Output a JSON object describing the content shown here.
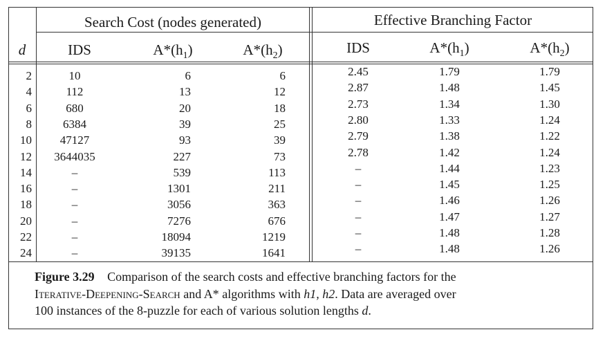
{
  "headers": {
    "search_cost": "Search Cost (nodes generated)",
    "ebf": "Effective Branching Factor",
    "d": "d",
    "ids": "IDS",
    "a_star_h1_base": "A*(h",
    "a_star_h1_sub": "1",
    "a_star_h2_base": "A*(h",
    "a_star_h2_sub": "2",
    "close_paren": ")"
  },
  "rows": [
    {
      "d": "2",
      "ids_cost": "10",
      "h1_cost": "6",
      "h2_cost": "6",
      "ids_ebf": "2.45",
      "h1_ebf": "1.79",
      "h2_ebf": "1.79"
    },
    {
      "d": "4",
      "ids_cost": "112",
      "h1_cost": "13",
      "h2_cost": "12",
      "ids_ebf": "2.87",
      "h1_ebf": "1.48",
      "h2_ebf": "1.45"
    },
    {
      "d": "6",
      "ids_cost": "680",
      "h1_cost": "20",
      "h2_cost": "18",
      "ids_ebf": "2.73",
      "h1_ebf": "1.34",
      "h2_ebf": "1.30"
    },
    {
      "d": "8",
      "ids_cost": "6384",
      "h1_cost": "39",
      "h2_cost": "25",
      "ids_ebf": "2.80",
      "h1_ebf": "1.33",
      "h2_ebf": "1.24"
    },
    {
      "d": "10",
      "ids_cost": "47127",
      "h1_cost": "93",
      "h2_cost": "39",
      "ids_ebf": "2.79",
      "h1_ebf": "1.38",
      "h2_ebf": "1.22"
    },
    {
      "d": "12",
      "ids_cost": "3644035",
      "h1_cost": "227",
      "h2_cost": "73",
      "ids_ebf": "2.78",
      "h1_ebf": "1.42",
      "h2_ebf": "1.24"
    },
    {
      "d": "14",
      "ids_cost": "–",
      "h1_cost": "539",
      "h2_cost": "113",
      "ids_ebf": "–",
      "h1_ebf": "1.44",
      "h2_ebf": "1.23"
    },
    {
      "d": "16",
      "ids_cost": "–",
      "h1_cost": "1301",
      "h2_cost": "211",
      "ids_ebf": "–",
      "h1_ebf": "1.45",
      "h2_ebf": "1.25"
    },
    {
      "d": "18",
      "ids_cost": "–",
      "h1_cost": "3056",
      "h2_cost": "363",
      "ids_ebf": "–",
      "h1_ebf": "1.46",
      "h2_ebf": "1.26"
    },
    {
      "d": "20",
      "ids_cost": "–",
      "h1_cost": "7276",
      "h2_cost": "676",
      "ids_ebf": "–",
      "h1_ebf": "1.47",
      "h2_ebf": "1.27"
    },
    {
      "d": "22",
      "ids_cost": "–",
      "h1_cost": "18094",
      "h2_cost": "1219",
      "ids_ebf": "–",
      "h1_ebf": "1.48",
      "h2_ebf": "1.28"
    },
    {
      "d": "24",
      "ids_cost": "–",
      "h1_cost": "39135",
      "h2_cost": "1641",
      "ids_ebf": "–",
      "h1_ebf": "1.48",
      "h2_ebf": "1.26"
    }
  ],
  "caption": {
    "label": "Figure 3.29",
    "text_1": "Comparison of the search costs and effective branching factors for the",
    "algo_name": "Iterative-Deepening-Search",
    "text_2": " and A* algorithms with ",
    "h_list": "h1, h2",
    "text_3": ". Data are averaged over",
    "text_4": "100 instances of the 8-puzzle for each of various solution lengths ",
    "d_var": "d",
    "end": "."
  }
}
